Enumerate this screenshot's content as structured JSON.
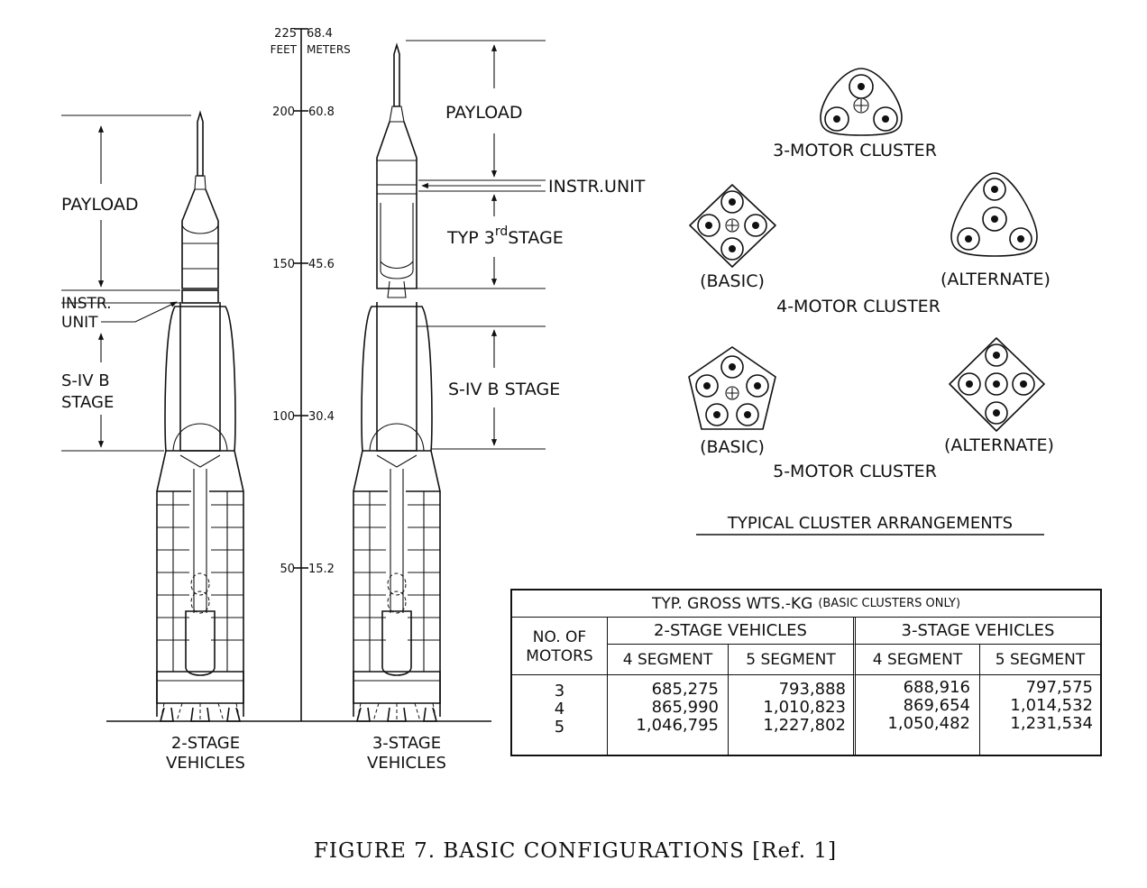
{
  "scale": {
    "top_feet": "225",
    "top_meters": "68.4",
    "unit_feet": "FEET",
    "unit_meters": "METERS",
    "ticks": [
      {
        "feet": "200",
        "meters": "60.8"
      },
      {
        "feet": "150",
        "meters": "45.6"
      },
      {
        "feet": "100",
        "meters": "30.4"
      },
      {
        "feet": "50",
        "meters": "15.2"
      }
    ]
  },
  "left_vehicle": {
    "payload": "PAYLOAD",
    "instr_line1": "INSTR.",
    "instr_line2": "UNIT",
    "stage_line1": "S-IV B",
    "stage_line2": "STAGE",
    "caption_line1": "2-STAGE",
    "caption_line2": "VEHICLES"
  },
  "right_vehicle": {
    "payload": "PAYLOAD",
    "instr": "INSTR.UNIT",
    "third_stage_a": "TYP 3",
    "third_stage_sup": "rd",
    "third_stage_b": "STAGE",
    "stage": "S-IV B STAGE",
    "caption_line1": "3-STAGE",
    "caption_line2": "VEHICLES"
  },
  "clusters": {
    "three_motor": "3-MOTOR CLUSTER",
    "four_motor": "4-MOTOR CLUSTER",
    "five_motor": "5-MOTOR CLUSTER",
    "basic": "(BASIC)",
    "alternate": "(ALTERNATE)",
    "heading": "TYPICAL CLUSTER ARRANGEMENTS"
  },
  "table": {
    "title": "TYP. GROSS WTS.-KG",
    "title_note": "(BASIC CLUSTERS ONLY)",
    "motors_header_line1": "NO. OF",
    "motors_header_line2": "MOTORS",
    "group_2stage": "2-STAGE VEHICLES",
    "group_3stage": "3-STAGE VEHICLES",
    "sub_headers": [
      "4 SEGMENT",
      "5 SEGMENT",
      "4 SEGMENT",
      "5 SEGMENT"
    ],
    "rows": [
      {
        "motors": "3",
        "values": [
          "685,275",
          "793,888",
          "688,916",
          "797,575"
        ]
      },
      {
        "motors": "4",
        "values": [
          "865,990",
          "1,010,823",
          "869,654",
          "1,014,532"
        ]
      },
      {
        "motors": "5",
        "values": [
          "1,046,795",
          "1,227,802",
          "1,050,482",
          "1,231,534"
        ]
      }
    ]
  },
  "figure_caption": "FIGURE 7.  BASIC CONFIGURATIONS [Ref. 1]"
}
